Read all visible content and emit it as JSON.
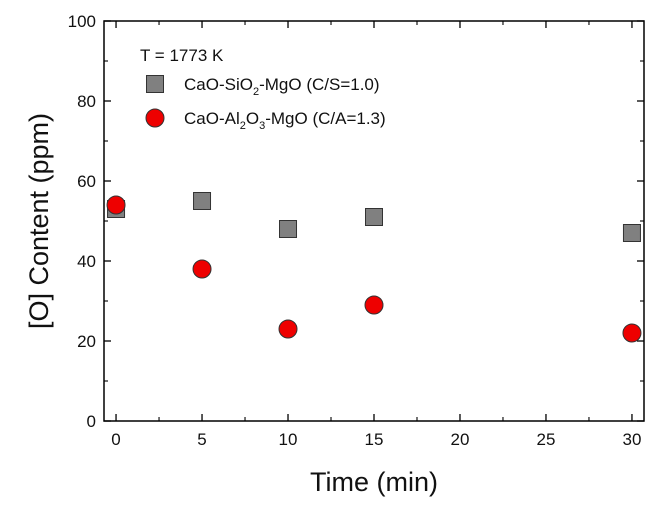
{
  "chart_data": {
    "type": "scatter",
    "xlabel": "Time (min)",
    "ylabel": "[O] Content (ppm)",
    "xlim": [
      -0.7,
      30.7
    ],
    "ylim": [
      0,
      100
    ],
    "x_ticks": [
      0,
      5,
      10,
      15,
      20,
      25,
      30
    ],
    "y_ticks": [
      0,
      20,
      40,
      60,
      80,
      100
    ],
    "grid": false,
    "legend_position": "top-left",
    "legend_heading": "T = 1773 K",
    "series": [
      {
        "name": "CaO-SiO2-MgO (C/S=1.0)",
        "label_parts": [
          {
            "text": "CaO-SiO",
            "sub": false
          },
          {
            "text": "2",
            "sub": true
          },
          {
            "text": "-MgO (C/S=1.0)",
            "sub": false
          }
        ],
        "marker": "square",
        "color": "#808080",
        "x": [
          0,
          5,
          10,
          15,
          30
        ],
        "y": [
          53,
          55,
          48,
          51,
          47
        ]
      },
      {
        "name": "CaO-Al2O3-MgO (C/A=1.3)",
        "label_parts": [
          {
            "text": "CaO-Al",
            "sub": false
          },
          {
            "text": "2",
            "sub": true
          },
          {
            "text": "O",
            "sub": false
          },
          {
            "text": "3",
            "sub": true
          },
          {
            "text": "-MgO (C/A=1.3)",
            "sub": false
          }
        ],
        "marker": "circle",
        "color": "#ee0000",
        "x": [
          0,
          5,
          10,
          15,
          30
        ],
        "y": [
          54,
          38,
          23,
          29,
          22
        ]
      }
    ]
  }
}
